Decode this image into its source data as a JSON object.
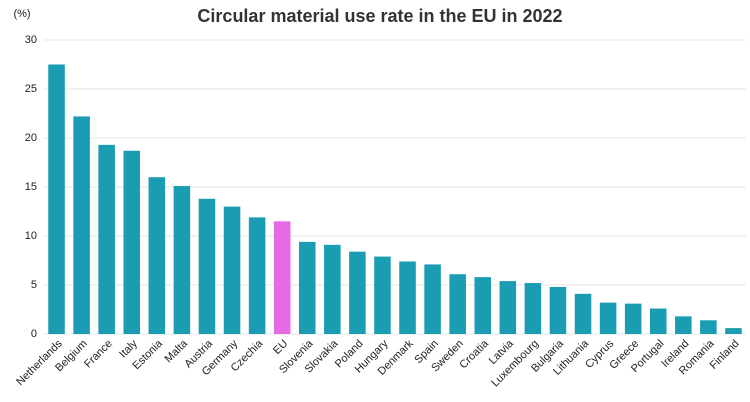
{
  "chart_data": {
    "type": "bar",
    "title": "Circular material use rate in the EU in 2022",
    "y_label": "(%)",
    "categories": [
      "Netherlands",
      "Belgium",
      "France",
      "Italy",
      "Estonia",
      "Malta",
      "Austria",
      "Germany",
      "Czechia",
      "EU",
      "Slovenia",
      "Slovakia",
      "Poland",
      "Hungary",
      "Denmark",
      "Spain",
      "Sweden",
      "Croatia",
      "Latvia",
      "Luxembourg",
      "Bulgaria",
      "Lithuania",
      "Cyprus",
      "Greece",
      "Portugal",
      "Ireland",
      "Romania",
      "Finland"
    ],
    "values": [
      27.5,
      22.2,
      19.3,
      18.7,
      16.0,
      15.1,
      13.8,
      13.0,
      11.9,
      11.5,
      9.4,
      9.1,
      8.4,
      7.9,
      7.4,
      7.1,
      6.1,
      5.8,
      5.4,
      5.2,
      4.8,
      4.1,
      3.2,
      3.1,
      2.6,
      1.8,
      1.4,
      0.6
    ],
    "colors": [
      "#1a9db2",
      "#1a9db2",
      "#1a9db2",
      "#1a9db2",
      "#1a9db2",
      "#1a9db2",
      "#1a9db2",
      "#1a9db2",
      "#1a9db2",
      "#e66ae6",
      "#1a9db2",
      "#1a9db2",
      "#1a9db2",
      "#1a9db2",
      "#1a9db2",
      "#1a9db2",
      "#1a9db2",
      "#1a9db2",
      "#1a9db2",
      "#1a9db2",
      "#1a9db2",
      "#1a9db2",
      "#1a9db2",
      "#1a9db2",
      "#1a9db2",
      "#1a9db2",
      "#1a9db2",
      "#1a9db2"
    ],
    "ylim": [
      0,
      30
    ],
    "yticks": [
      0,
      5,
      10,
      15,
      20,
      25,
      30
    ],
    "grid": true
  }
}
